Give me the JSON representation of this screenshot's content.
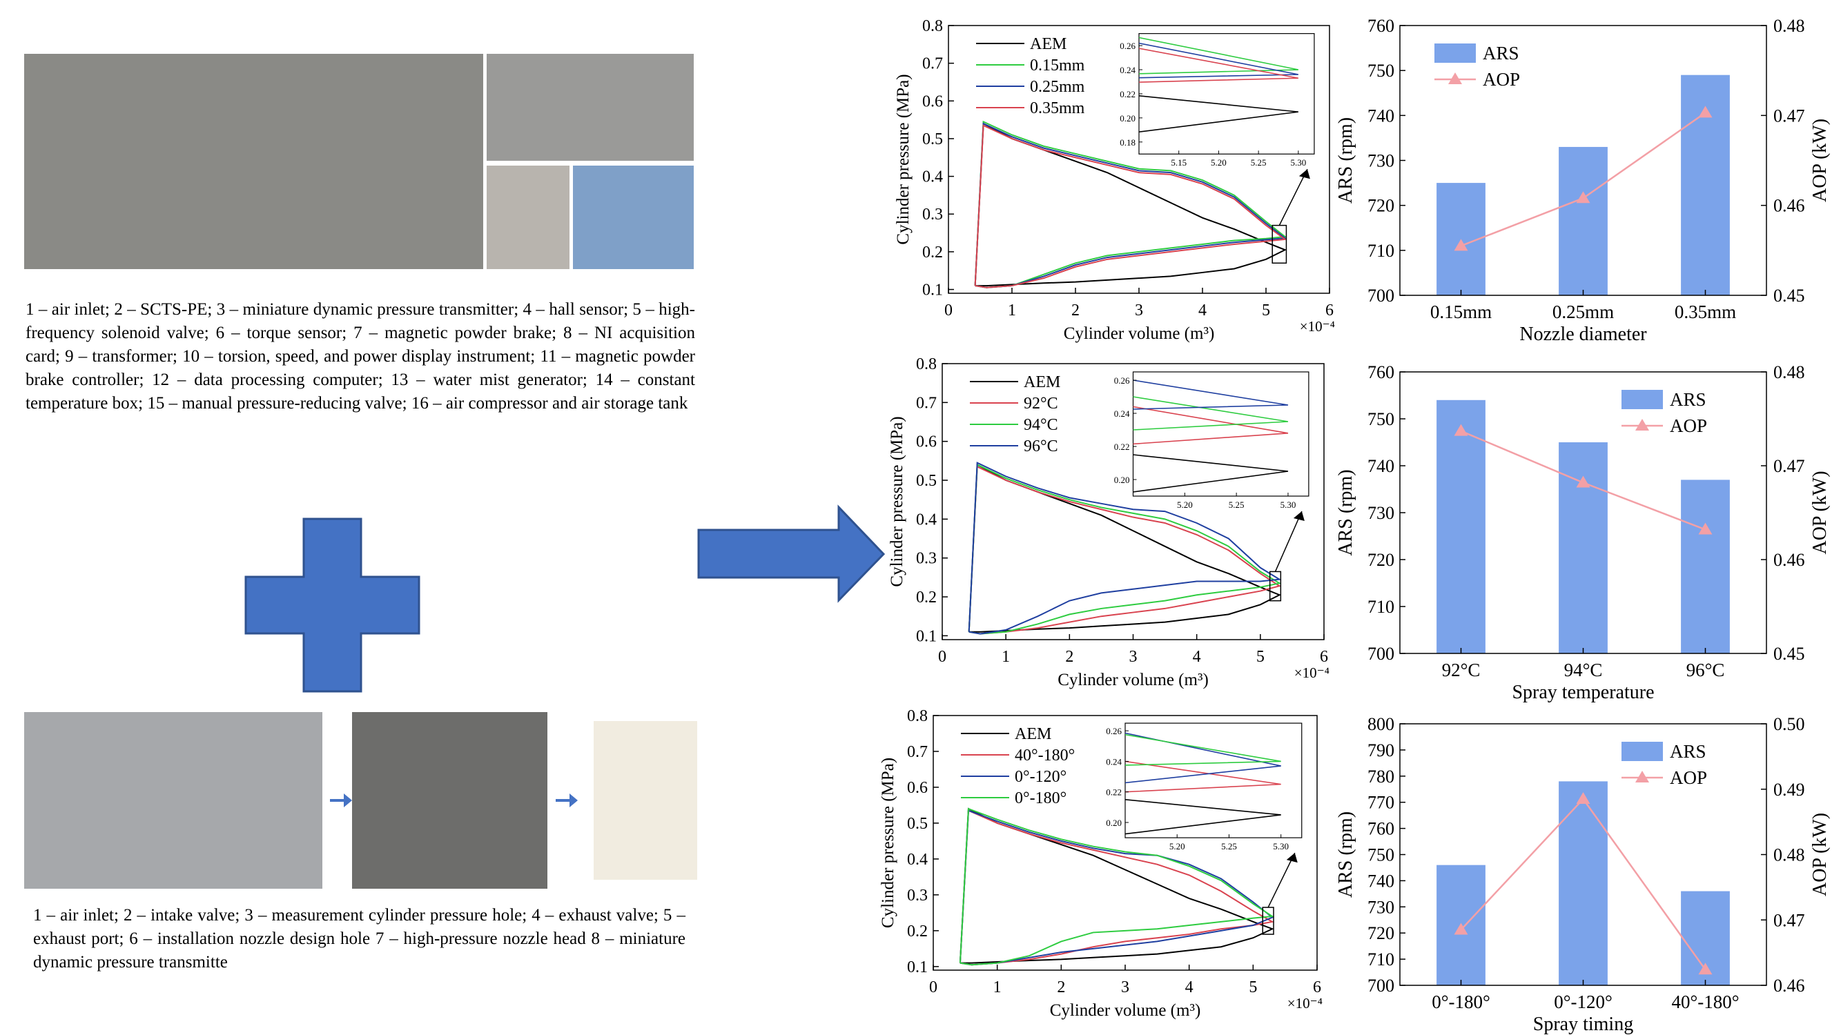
{
  "captions": [
    "1 – air inlet; 2 – SCTS-PE; 3 – miniature dynamic pressure transmitter; 4 – hall sensor; 5 – high-frequency solenoid valve; 6 – torque sensor; 7 – magnetic powder brake; 8 – NI acquisition card; 9 – transformer; 10 – torsion, speed, and power display instrument; 11 – magnetic powder brake controller; 12 – data processing computer; 13 – water mist generator; 14 – constant temperature box; 15 – manual pressure-reducing valve; 16 – air compressor and air storage tank",
    "1 – air inlet; 2 – intake valve; 3 – measurement cylinder pressure hole; 4 – exhaust valve; 5 – exhaust port; 6 – installation nozzle design hole 7 – high-pressure nozzle head 8 – miniature dynamic pressure transmitte"
  ],
  "chart_data": [
    {
      "type": "line",
      "x_label": "Cylinder volume (m³)",
      "y_label": "Cylinder pressure (MPa)",
      "x_multiplier": "×10⁻⁴",
      "xlim": [
        0,
        6
      ],
      "xticks": [
        0,
        1,
        2,
        3,
        4,
        5,
        6
      ],
      "ylim": [
        0.09,
        0.8
      ],
      "yticks": [
        0.1,
        0.2,
        0.3,
        0.4,
        0.5,
        0.6,
        0.7,
        0.8
      ],
      "x": [
        0.42,
        0.55,
        1,
        1.5,
        2,
        2.5,
        3,
        3.5,
        4,
        4.5,
        5,
        5.3,
        5.3,
        5,
        4.5,
        4,
        3.5,
        3,
        2.5,
        2,
        1.5,
        1,
        0.6,
        0.42
      ],
      "series": [
        {
          "name": "AEM",
          "color": "#000000",
          "values": [
            0.11,
            0.54,
            0.5,
            0.47,
            0.44,
            0.41,
            0.37,
            0.33,
            0.29,
            0.26,
            0.225,
            0.205,
            0.205,
            0.18,
            0.155,
            0.145,
            0.135,
            0.13,
            0.125,
            0.12,
            0.117,
            0.113,
            0.11,
            0.11
          ]
        },
        {
          "name": "0.15mm",
          "color": "#2ecc40",
          "values": [
            0.11,
            0.545,
            0.51,
            0.48,
            0.46,
            0.44,
            0.42,
            0.415,
            0.39,
            0.35,
            0.28,
            0.24,
            0.24,
            0.235,
            0.23,
            0.22,
            0.21,
            0.2,
            0.19,
            0.17,
            0.14,
            0.11,
            0.105,
            0.11
          ]
        },
        {
          "name": "0.25mm",
          "color": "#1f3fa0",
          "values": [
            0.11,
            0.54,
            0.505,
            0.475,
            0.455,
            0.435,
            0.415,
            0.41,
            0.385,
            0.345,
            0.275,
            0.236,
            0.236,
            0.232,
            0.225,
            0.215,
            0.205,
            0.195,
            0.185,
            0.165,
            0.135,
            0.11,
            0.105,
            0.11
          ]
        },
        {
          "name": "0.35mm",
          "color": "#d9434f",
          "values": [
            0.11,
            0.535,
            0.5,
            0.47,
            0.45,
            0.43,
            0.41,
            0.405,
            0.38,
            0.34,
            0.27,
            0.233,
            0.233,
            0.228,
            0.22,
            0.21,
            0.2,
            0.19,
            0.18,
            0.16,
            0.13,
            0.11,
            0.105,
            0.11
          ]
        }
      ],
      "inset": {
        "xlim": [
          5.1,
          5.32
        ],
        "xticks": [
          5.15,
          {
            "value": 5.2,
            "label": "5.20"
          },
          5.25,
          {
            "value": 5.3,
            "label": "5.30"
          }
        ],
        "ylim": [
          0.17,
          0.27
        ],
        "yticks": [
          0.18,
          {
            "value": 0.2,
            "label": "0.20"
          },
          0.22,
          0.24,
          0.26
        ]
      }
    },
    {
      "type": "bar",
      "x_label": "Nozzle diameter",
      "y_label": "ARS (rpm)",
      "y2_label": "AOP (kW)",
      "legend": "upper left",
      "categories": [
        "0.15mm",
        "0.25mm",
        "0.35mm"
      ],
      "ylim": [
        700,
        760
      ],
      "yticks": [
        700,
        710,
        720,
        730,
        740,
        750,
        760
      ],
      "y2lim": [
        0.45,
        0.48
      ],
      "y2ticks": [
        0.45,
        0.46,
        0.47,
        0.48
      ],
      "series": [
        {
          "name": "ARS",
          "color": "#7ba3ea",
          "values": [
            725,
            733,
            749
          ]
        },
        {
          "name": "AOP",
          "color": "#f3a0a6",
          "axis": "y2",
          "values": [
            0.4555,
            0.4608,
            0.4703
          ]
        }
      ]
    },
    {
      "type": "line",
      "x_label": "Cylinder volume (m³)",
      "y_label": "Cylinder pressure (MPa)",
      "x_multiplier": "×10⁻⁴",
      "xlim": [
        0,
        6
      ],
      "xticks": [
        0,
        1,
        2,
        3,
        4,
        5,
        6
      ],
      "ylim": [
        0.09,
        0.8
      ],
      "yticks": [
        0.1,
        0.2,
        0.3,
        0.4,
        0.5,
        0.6,
        0.7,
        0.8
      ],
      "x": [
        0.42,
        0.55,
        1,
        1.5,
        2,
        2.5,
        3,
        3.5,
        4,
        4.5,
        5,
        5.3,
        5.3,
        5,
        4.5,
        4,
        3.5,
        3,
        2.5,
        2,
        1.5,
        1,
        0.6,
        0.42
      ],
      "series": [
        {
          "name": "AEM",
          "color": "#000000",
          "values": [
            0.11,
            0.54,
            0.5,
            0.47,
            0.44,
            0.41,
            0.37,
            0.33,
            0.29,
            0.26,
            0.225,
            0.205,
            0.205,
            0.18,
            0.155,
            0.145,
            0.135,
            0.13,
            0.125,
            0.12,
            0.117,
            0.113,
            0.11,
            0.11
          ]
        },
        {
          "name": "92°C",
          "color": "#d9434f",
          "values": [
            0.11,
            0.535,
            0.5,
            0.47,
            0.445,
            0.425,
            0.405,
            0.39,
            0.36,
            0.32,
            0.26,
            0.228,
            0.228,
            0.215,
            0.2,
            0.185,
            0.17,
            0.16,
            0.15,
            0.135,
            0.12,
            0.11,
            0.105,
            0.11
          ]
        },
        {
          "name": "94°C",
          "color": "#2ecc40",
          "values": [
            0.11,
            0.54,
            0.505,
            0.475,
            0.45,
            0.43,
            0.415,
            0.4,
            0.37,
            0.33,
            0.265,
            0.235,
            0.235,
            0.225,
            0.215,
            0.205,
            0.19,
            0.18,
            0.17,
            0.155,
            0.13,
            0.11,
            0.105,
            0.11
          ]
        },
        {
          "name": "96°C",
          "color": "#1f3fa0",
          "values": [
            0.11,
            0.545,
            0.51,
            0.48,
            0.455,
            0.44,
            0.425,
            0.42,
            0.39,
            0.35,
            0.275,
            0.245,
            0.245,
            0.24,
            0.24,
            0.24,
            0.23,
            0.22,
            0.21,
            0.19,
            0.15,
            0.115,
            0.105,
            0.11
          ]
        }
      ],
      "inset": {
        "xlim": [
          5.15,
          5.32
        ],
        "xticks": [
          {
            "value": 5.2,
            "label": "5.20"
          },
          5.25,
          {
            "value": 5.3,
            "label": "5.30"
          }
        ],
        "ylim": [
          0.19,
          0.265
        ],
        "yticks": [
          {
            "value": 0.2,
            "label": "0.20"
          },
          0.22,
          0.24,
          0.26
        ]
      }
    },
    {
      "type": "bar",
      "x_label": "Spray temperature",
      "y_label": "ARS (rpm)",
      "y2_label": "AOP (kW)",
      "legend": "upper right",
      "categories": [
        "92°C",
        "94°C",
        "96°C"
      ],
      "ylim": [
        700,
        760
      ],
      "yticks": [
        700,
        710,
        720,
        730,
        740,
        750,
        760
      ],
      "y2lim": [
        0.45,
        0.48
      ],
      "y2ticks": [
        0.45,
        0.46,
        0.47,
        0.48
      ],
      "series": [
        {
          "name": "ARS",
          "color": "#7ba3ea",
          "values": [
            754,
            745,
            737
          ]
        },
        {
          "name": "AOP",
          "color": "#f3a0a6",
          "axis": "y2",
          "values": [
            0.4737,
            0.4682,
            0.4632
          ]
        }
      ]
    },
    {
      "type": "line",
      "x_label": "Cylinder volume (m³)",
      "y_label": "Cylinder pressure (MPa)",
      "x_multiplier": "×10⁻⁴",
      "xlim": [
        0,
        6
      ],
      "xticks": [
        0,
        1,
        2,
        3,
        4,
        5,
        6
      ],
      "ylim": [
        0.09,
        0.8
      ],
      "yticks": [
        0.1,
        0.2,
        0.3,
        0.4,
        0.5,
        0.6,
        0.7,
        0.8
      ],
      "x": [
        0.42,
        0.55,
        1,
        1.5,
        2,
        2.5,
        3,
        3.5,
        4,
        4.5,
        5,
        5.3,
        5.3,
        5,
        4.5,
        4,
        3.5,
        3,
        2.5,
        2,
        1.5,
        1,
        0.6,
        0.42
      ],
      "series": [
        {
          "name": "AEM",
          "color": "#000000",
          "values": [
            0.11,
            0.54,
            0.5,
            0.47,
            0.44,
            0.41,
            0.37,
            0.33,
            0.29,
            0.26,
            0.225,
            0.205,
            0.205,
            0.18,
            0.155,
            0.145,
            0.135,
            0.13,
            0.125,
            0.12,
            0.117,
            0.113,
            0.11,
            0.11
          ]
        },
        {
          "name": "40°-180°",
          "color": "#d9434f",
          "values": [
            0.11,
            0.535,
            0.5,
            0.47,
            0.445,
            0.425,
            0.405,
            0.385,
            0.355,
            0.31,
            0.255,
            0.225,
            0.225,
            0.215,
            0.205,
            0.19,
            0.18,
            0.17,
            0.155,
            0.135,
            0.12,
            0.11,
            0.105,
            0.11
          ]
        },
        {
          "name": "0°-120°",
          "color": "#1f3fa0",
          "values": [
            0.11,
            0.535,
            0.505,
            0.475,
            0.45,
            0.43,
            0.415,
            0.41,
            0.385,
            0.345,
            0.28,
            0.237,
            0.237,
            0.215,
            0.2,
            0.185,
            0.17,
            0.16,
            0.15,
            0.14,
            0.125,
            0.11,
            0.105,
            0.11
          ]
        },
        {
          "name": "0°-180°",
          "color": "#2ecc40",
          "values": [
            0.11,
            0.54,
            0.51,
            0.48,
            0.455,
            0.435,
            0.42,
            0.41,
            0.38,
            0.34,
            0.275,
            0.24,
            0.24,
            0.235,
            0.225,
            0.215,
            0.205,
            0.2,
            0.195,
            0.17,
            0.13,
            0.11,
            0.105,
            0.11
          ]
        }
      ],
      "inset": {
        "xlim": [
          5.15,
          5.32
        ],
        "xticks": [
          {
            "value": 5.2,
            "label": "5.20"
          },
          5.25,
          {
            "value": 5.3,
            "label": "5.30"
          }
        ],
        "ylim": [
          0.19,
          0.265
        ],
        "yticks": [
          {
            "value": 0.2,
            "label": "0.20"
          },
          0.22,
          0.24,
          0.26
        ]
      }
    },
    {
      "type": "bar",
      "x_label": "Spray timing",
      "y_label": "ARS (rpm)",
      "y2_label": "AOP (kW)",
      "legend": "upper right",
      "categories": [
        "0°-180°",
        "0°-120°",
        "40°-180°"
      ],
      "ylim": [
        700,
        800
      ],
      "yticks": [
        700,
        710,
        720,
        730,
        740,
        750,
        760,
        770,
        780,
        790,
        800
      ],
      "y2lim": [
        0.46,
        0.5
      ],
      "y2ticks": [
        0.46,
        0.47,
        0.48,
        0.49,
        {
          "value": 0.5,
          "label": "0.50"
        }
      ],
      "series": [
        {
          "name": "ARS",
          "color": "#7ba3ea",
          "values": [
            746,
            778,
            736
          ]
        },
        {
          "name": "AOP",
          "color": "#f3a0a6",
          "axis": "y2",
          "values": [
            0.4685,
            0.4885,
            0.4624
          ]
        }
      ]
    }
  ]
}
